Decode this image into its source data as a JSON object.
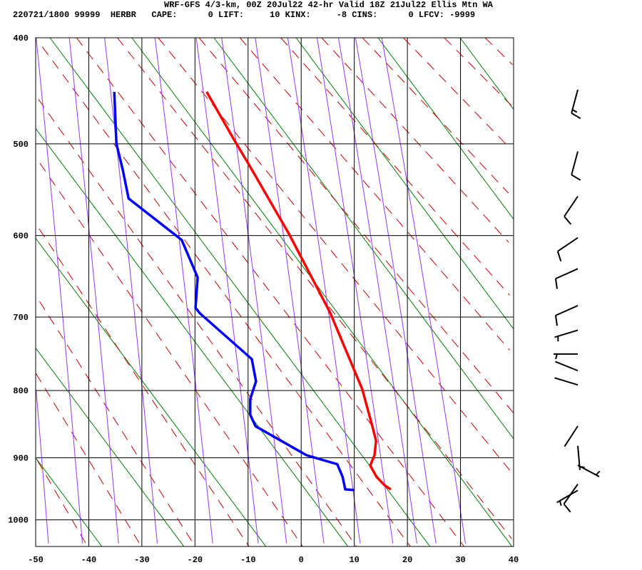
{
  "header": {
    "title": "WRF-GFS 4/3-km, 00Z 20Jul22 42-hr Valid 18Z 21Jul22 Ellis Mtn WA",
    "stats": "220721/1800 99999  HERBR   CAPE:      0 LIFT:     10 KINX:     -8 CINS:      0 LFCV: -9999"
  },
  "chart_data": {
    "type": "line",
    "subtype": "skew-t log-p sounding",
    "xlim": [
      -50,
      40
    ],
    "ylim_hpa": [
      1048,
      400
    ],
    "y_scale": "p^0.286",
    "x_ticks": [
      "-50",
      "-40",
      "-30",
      "-20",
      "-10",
      "0",
      "10",
      "20",
      "30",
      "40"
    ],
    "y_ticks": [
      "400",
      "500",
      "600",
      "700",
      "800",
      "900",
      "1000"
    ],
    "grid": true,
    "colors": {
      "temperature": "#ff0000",
      "dewpoint": "#0000ff",
      "dry_adiabats": "#cc0000",
      "mixing_ratio": "#9933ff",
      "green_lines": "#008000",
      "grid": "#000000",
      "wind_barbs": "#000000"
    },
    "series": [
      {
        "key": "temperature",
        "points": [
          [
            449,
            -17.8
          ],
          [
            498,
            -12.4
          ],
          [
            520,
            -10.0
          ],
          [
            598,
            -2.3
          ],
          [
            695,
            5.5
          ],
          [
            710,
            6.4
          ],
          [
            798,
            11.5
          ],
          [
            852,
            13.4
          ],
          [
            874,
            14.1
          ],
          [
            896,
            13.8
          ],
          [
            912,
            13.0
          ],
          [
            930,
            14.2
          ],
          [
            944,
            15.8
          ],
          [
            950,
            16.9
          ]
        ]
      },
      {
        "key": "dewpoint",
        "points": [
          [
            449,
            -35.2
          ],
          [
            500,
            -34.8
          ],
          [
            527,
            -33.6
          ],
          [
            558,
            -32.5
          ],
          [
            605,
            -22.5
          ],
          [
            650,
            -19.5
          ],
          [
            688,
            -19.9
          ],
          [
            695,
            -19.1
          ],
          [
            756,
            -9.3
          ],
          [
            787,
            -8.5
          ],
          [
            812,
            -9.6
          ],
          [
            835,
            -9.6
          ],
          [
            852,
            -8.6
          ],
          [
            896,
            1.0
          ],
          [
            910,
            6.8
          ],
          [
            930,
            7.8
          ],
          [
            950,
            8.3
          ],
          [
            951,
            10.0
          ]
        ]
      }
    ],
    "wind_barbs": [
      {
        "p": 449,
        "dir": 195,
        "kt": 15
      },
      {
        "p": 510,
        "dir": 195,
        "kt": 10
      },
      {
        "p": 558,
        "dir": 214,
        "kt": 10
      },
      {
        "p": 605,
        "dir": 236,
        "kt": 10
      },
      {
        "p": 642,
        "dir": 246,
        "kt": 10
      },
      {
        "p": 688,
        "dir": 246,
        "kt": 10
      },
      {
        "p": 720,
        "dir": 253,
        "kt": 5
      },
      {
        "p": 752,
        "dir": 270,
        "kt": 5
      },
      {
        "p": 775,
        "dir": 292,
        "kt": 0
      },
      {
        "p": 795,
        "dir": 287,
        "kt": 0
      },
      {
        "p": 855,
        "dir": 213,
        "kt": 0
      },
      {
        "p": 885,
        "dir": 175,
        "kt": 5
      },
      {
        "p": 915,
        "dir": 118,
        "kt": 5
      },
      {
        "p": 945,
        "dir": 215,
        "kt": 10
      },
      {
        "p": 955,
        "dir": 240,
        "kt": 5
      }
    ]
  }
}
